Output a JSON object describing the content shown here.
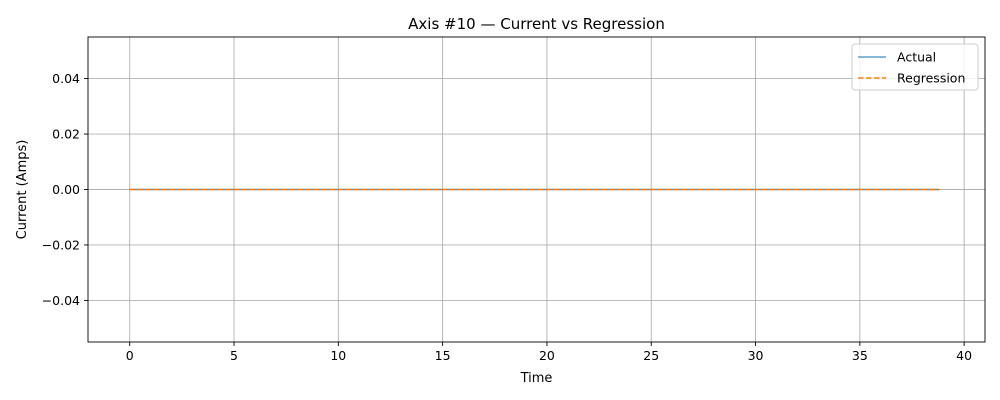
{
  "chart_data": {
    "type": "line",
    "title": "Axis #10 — Current vs Regression",
    "xlabel": "Time",
    "ylabel": "Current (Amps)",
    "xlim": [
      -2,
      41
    ],
    "ylim": [
      -0.055,
      0.055
    ],
    "xticks": [
      0,
      5,
      10,
      15,
      20,
      25,
      30,
      35,
      40
    ],
    "yticks": [
      -0.04,
      -0.02,
      0.0,
      0.02,
      0.04
    ],
    "ytick_labels": [
      "−0.04",
      "−0.02",
      "0.00",
      "0.02",
      "0.04"
    ],
    "grid": true,
    "legend_position": "upper right",
    "series": [
      {
        "name": "Actual",
        "color": "#1f77b4",
        "style": "solid",
        "x": [
          0,
          38.8
        ],
        "y": [
          0,
          0
        ]
      },
      {
        "name": "Regression",
        "color": "#ff7f0e",
        "style": "dashed",
        "x": [
          0,
          38.8
        ],
        "y": [
          0,
          0
        ]
      }
    ]
  }
}
